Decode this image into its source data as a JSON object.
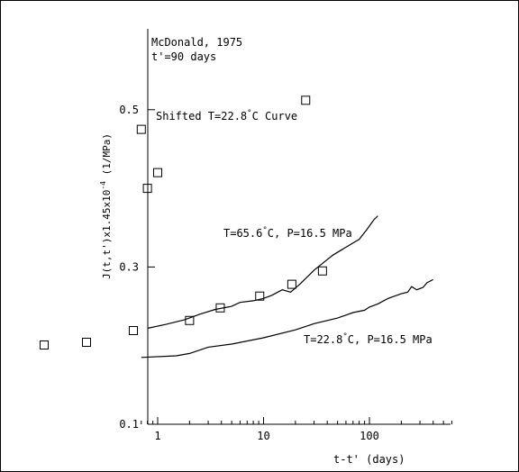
{
  "chart_data": {
    "type": "line",
    "annotations": {
      "source": "McDonald, 1975",
      "age": "t'=90 days",
      "shifted_label": "Shifted T=22.8",
      "shifted_unit": "C Curve",
      "hot_label_a": "T=65.6",
      "hot_label_b": "C, P=16.5 MPa",
      "cold_label_a": "T=22.8",
      "cold_label_b": "C, P=16.5 MPa",
      "degree": "°"
    },
    "xlabel": "t-t' (days)",
    "ylabel_main": "J(t,t')x1.45x10",
    "ylabel_exp": "-4",
    "ylabel_unit": " (1/MPa)",
    "x_scale": "log",
    "xlim": [
      0.7,
      600
    ],
    "ylim": [
      0.1,
      0.6
    ],
    "x_ticks": [
      {
        "value": 1,
        "label": "1"
      },
      {
        "value": 10,
        "label": "10"
      },
      {
        "value": 100,
        "label": "100"
      }
    ],
    "y_ticks": [
      {
        "value": 0.1,
        "label": "0.1"
      },
      {
        "value": 0.3,
        "label": "0.3"
      },
      {
        "value": 0.5,
        "label": "0.5"
      }
    ],
    "series": [
      {
        "key": "hot",
        "style": "line",
        "points": [
          [
            0.8,
            0.222
          ],
          [
            1.2,
            0.227
          ],
          [
            1.8,
            0.233
          ],
          [
            2.5,
            0.24
          ],
          [
            3.5,
            0.246
          ],
          [
            5,
            0.25
          ],
          [
            6,
            0.255
          ],
          [
            8,
            0.257
          ],
          [
            10,
            0.26
          ],
          [
            12,
            0.264
          ],
          [
            15,
            0.271
          ],
          [
            18,
            0.268
          ],
          [
            22,
            0.278
          ],
          [
            30,
            0.296
          ],
          [
            45,
            0.315
          ],
          [
            65,
            0.328
          ],
          [
            80,
            0.335
          ],
          [
            95,
            0.348
          ],
          [
            110,
            0.36
          ],
          [
            120,
            0.365
          ]
        ]
      },
      {
        "key": "cold",
        "style": "line",
        "points": [
          [
            0.7,
            0.185
          ],
          [
            1.5,
            0.187
          ],
          [
            2,
            0.19
          ],
          [
            3,
            0.198
          ],
          [
            5,
            0.202
          ],
          [
            10,
            0.21
          ],
          [
            20,
            0.22
          ],
          [
            30,
            0.228
          ],
          [
            50,
            0.235
          ],
          [
            70,
            0.242
          ],
          [
            90,
            0.245
          ],
          [
            100,
            0.249
          ],
          [
            120,
            0.253
          ],
          [
            150,
            0.26
          ],
          [
            200,
            0.266
          ],
          [
            230,
            0.268
          ],
          [
            250,
            0.275
          ],
          [
            280,
            0.271
          ],
          [
            320,
            0.274
          ],
          [
            350,
            0.28
          ],
          [
            400,
            0.284
          ]
        ]
      },
      {
        "key": "shifted",
        "style": "markers",
        "points": [
          [
            0.7,
            0.475
          ],
          [
            0.8,
            0.4
          ],
          [
            1.0,
            0.42
          ],
          [
            2,
            0.232
          ],
          [
            3.9,
            0.248
          ],
          [
            9.2,
            0.263
          ],
          [
            18.5,
            0.278
          ],
          [
            25,
            0.512
          ],
          [
            36,
            0.295
          ]
        ]
      }
    ]
  }
}
